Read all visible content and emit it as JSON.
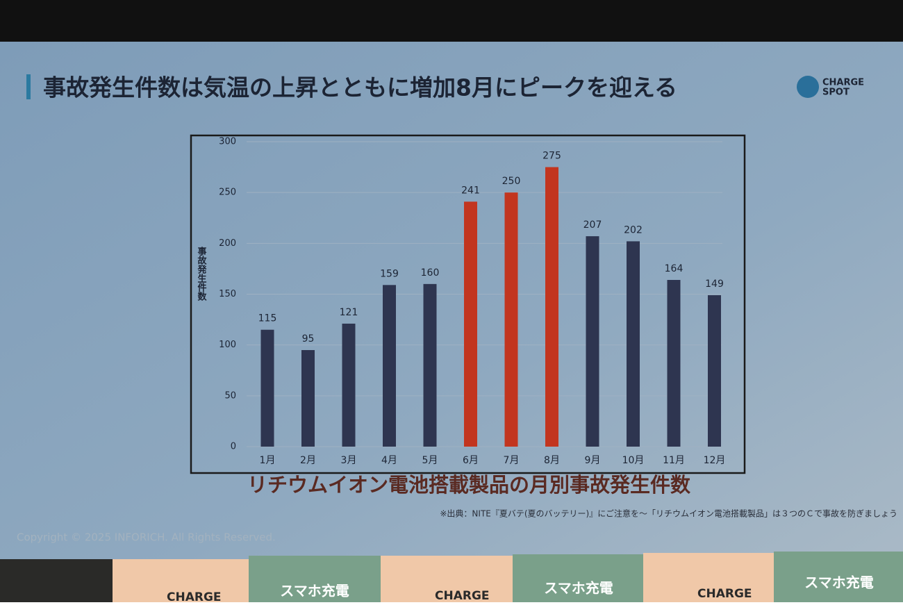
{
  "slide": {
    "title": "事故発生件数は気温の上昇とともに増加8月にピークを迎える",
    "logo": [
      "CHARGE",
      "SPOT"
    ],
    "source": "※出典：NITE『夏バテ(夏のバッテリー)』にご注意を～「リチウムイオン電池搭載製品」は３つのＣで事故を防ぎましょう",
    "copyright": "Copyright © 2025 INFORICH. All Rights Reserved.",
    "banner": {
      "brand": "CHARGE",
      "slogan": "スマホ充電"
    }
  },
  "chart_data": {
    "type": "bar",
    "title": "リチウムイオン電池搭載製品の月別事故発生件数",
    "y_label": "事故発生件数",
    "categories": [
      "1月",
      "2月",
      "3月",
      "4月",
      "5月",
      "6月",
      "7月",
      "8月",
      "9月",
      "10月",
      "11月",
      "12月"
    ],
    "values": [
      115,
      95,
      121,
      159,
      160,
      241,
      250,
      275,
      207,
      202,
      164,
      149
    ],
    "colors": [
      "#2e3550",
      "#2e3550",
      "#2e3550",
      "#2e3550",
      "#2e3550",
      "#c2351f",
      "#c2351f",
      "#c2351f",
      "#2e3550",
      "#2e3550",
      "#2e3550",
      "#2e3550"
    ],
    "ylim": [
      0,
      300
    ],
    "yticks": [
      0,
      50,
      100,
      150,
      200,
      250,
      300
    ],
    "grid": true
  }
}
